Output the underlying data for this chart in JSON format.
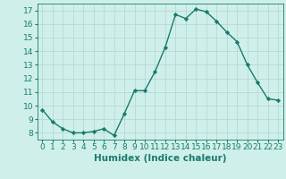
{
  "x": [
    0,
    1,
    2,
    3,
    4,
    5,
    6,
    7,
    8,
    9,
    10,
    11,
    12,
    13,
    14,
    15,
    16,
    17,
    18,
    19,
    20,
    21,
    22,
    23
  ],
  "y": [
    9.7,
    8.8,
    8.3,
    8.0,
    8.0,
    8.1,
    8.3,
    7.8,
    9.4,
    11.1,
    11.1,
    12.5,
    14.3,
    16.7,
    16.4,
    17.1,
    16.9,
    16.2,
    15.4,
    14.7,
    13.0,
    11.7,
    10.5,
    10.4
  ],
  "line_color": "#1a7a6e",
  "marker": "D",
  "marker_size": 2.2,
  "bg_color": "#cff0ea",
  "grid_color": "#b8d8d4",
  "xlabel": "Humidex (Indice chaleur)",
  "ylim": [
    7.5,
    17.5
  ],
  "xlim": [
    -0.5,
    23.5
  ],
  "yticks": [
    8,
    9,
    10,
    11,
    12,
    13,
    14,
    15,
    16,
    17
  ],
  "xticks": [
    0,
    1,
    2,
    3,
    4,
    5,
    6,
    7,
    8,
    9,
    10,
    11,
    12,
    13,
    14,
    15,
    16,
    17,
    18,
    19,
    20,
    21,
    22,
    23
  ],
  "xlabel_fontsize": 7.5,
  "tick_fontsize": 6.5,
  "line_width": 1.0
}
